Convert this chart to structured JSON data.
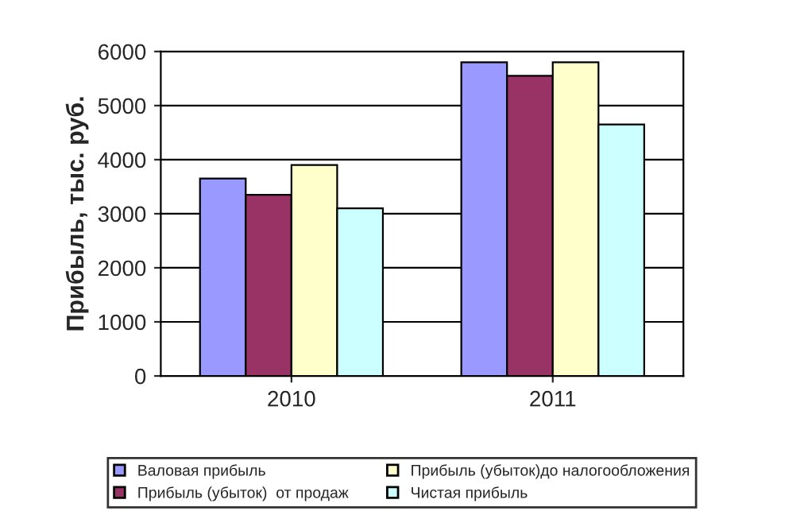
{
  "chart_data": {
    "type": "bar",
    "ylabel": "Прибыль, тыс. руб.",
    "categories": [
      "2010",
      "2011"
    ],
    "series": [
      {
        "name": "Валовая прибыль",
        "color": "#9999ff",
        "values": [
          3650,
          5800
        ]
      },
      {
        "name": "Прибыль (убыток)  от продаж",
        "color": "#993366",
        "values": [
          3350,
          5550
        ]
      },
      {
        "name": "Прибыль (убыток)до налогообложения",
        "color": "#ffffcc",
        "values": [
          3900,
          5800
        ]
      },
      {
        "name": "Чистая прибыль",
        "color": "#ccffff",
        "values": [
          3100,
          4650
        ]
      }
    ],
    "ylim": [
      0,
      6000
    ],
    "yticks": [
      0,
      1000,
      2000,
      3000,
      4000,
      5000,
      6000
    ],
    "grid": "y",
    "legend": "bottom"
  }
}
